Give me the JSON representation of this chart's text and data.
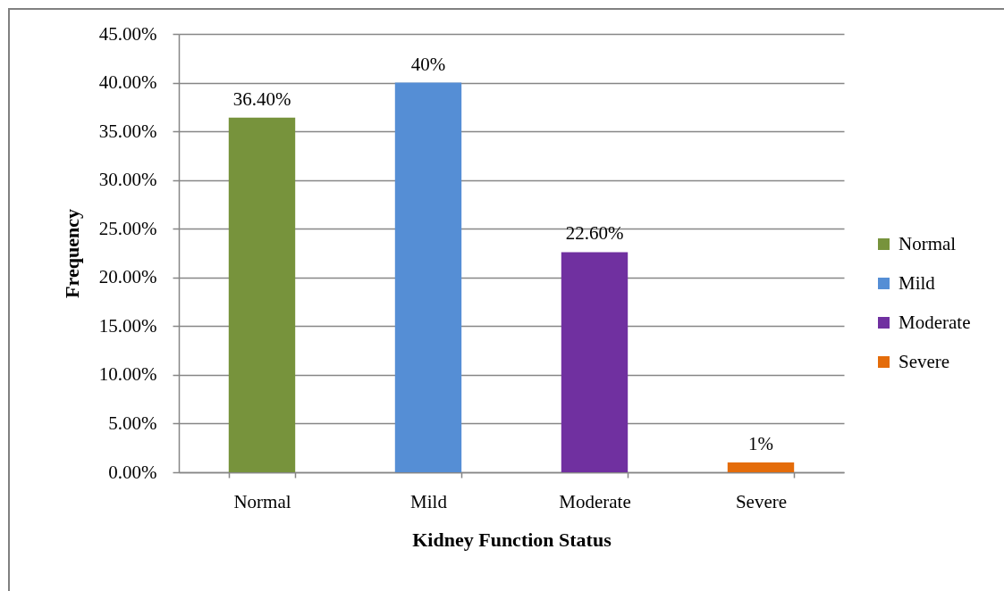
{
  "chart_data": {
    "type": "bar",
    "xlabel": "Kidney Function Status",
    "ylabel": "Frequency",
    "categories": [
      "Normal",
      "Mild",
      "Moderate",
      "Severe"
    ],
    "series": [
      {
        "name": "Normal",
        "color": "#77933c",
        "values": [
          36.4,
          null,
          null,
          null
        ],
        "value_labels": [
          "36.40%",
          null,
          null,
          null
        ]
      },
      {
        "name": "Mild",
        "color": "#558ed5",
        "values": [
          null,
          40,
          null,
          null
        ],
        "value_labels": [
          null,
          "40%",
          null,
          null
        ]
      },
      {
        "name": "Moderate",
        "color": "#7030a0",
        "values": [
          null,
          null,
          22.6,
          null
        ],
        "value_labels": [
          null,
          null,
          "22.60%",
          null
        ]
      },
      {
        "name": "Severe",
        "color": "#e46c0a",
        "values": [
          null,
          null,
          null,
          1
        ],
        "value_labels": [
          null,
          null,
          null,
          "1%"
        ]
      }
    ],
    "ylim": [
      0,
      45
    ],
    "yticks": [
      {
        "value": 0,
        "label": "0.00%"
      },
      {
        "value": 5,
        "label": "5.00%"
      },
      {
        "value": 10,
        "label": "10.00%"
      },
      {
        "value": 15,
        "label": "15.00%"
      },
      {
        "value": 20,
        "label": "20.00%"
      },
      {
        "value": 25,
        "label": "25.00%"
      },
      {
        "value": 30,
        "label": "30.00%"
      },
      {
        "value": 35,
        "label": "35.00%"
      },
      {
        "value": 40,
        "label": "40.00%"
      },
      {
        "value": 45,
        "label": "45.00%"
      }
    ],
    "grid": "y",
    "legend": "right"
  }
}
